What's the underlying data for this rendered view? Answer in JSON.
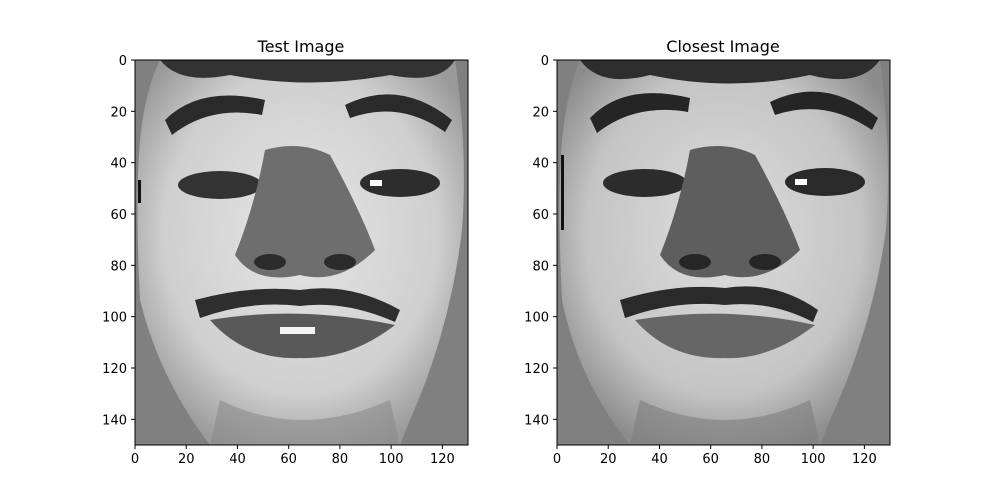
{
  "chart_data": [
    {
      "type": "heatmap",
      "title": "Test Image",
      "xlim": [
        0,
        130
      ],
      "ylim": [
        150,
        0
      ],
      "xticks": [
        0,
        20,
        40,
        60,
        80,
        100,
        120
      ],
      "yticks": [
        0,
        20,
        40,
        60,
        80,
        100,
        120,
        140
      ],
      "grid": false
    },
    {
      "type": "heatmap",
      "title": "Closest Image",
      "xlim": [
        0,
        130
      ],
      "ylim": [
        150,
        0
      ],
      "xticks": [
        0,
        20,
        40,
        60,
        80,
        100,
        120
      ],
      "yticks": [
        0,
        20,
        40,
        60,
        80,
        100,
        120,
        140
      ],
      "grid": false
    }
  ],
  "colors": {
    "background_gray": "#808080",
    "face_light": "#e6e6e6",
    "face_mid": "#a8a8a8",
    "feature_dark": "#222222",
    "axis": "#000000"
  }
}
